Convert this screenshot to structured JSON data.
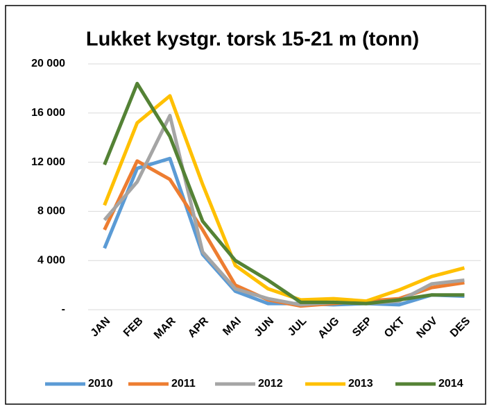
{
  "chart_data": {
    "type": "line",
    "title": "Lukket kystgr. torsk 15-21 m (tonn)",
    "categories": [
      "JAN",
      "FEB",
      "MAR",
      "APR",
      "MAI",
      "JUN",
      "JUL",
      "AUG",
      "SEP",
      "OKT",
      "NOV",
      "DES"
    ],
    "series": [
      {
        "name": "2010",
        "color": "#5b9bd5",
        "values": [
          5000,
          11500,
          12300,
          4500,
          1500,
          500,
          500,
          400,
          500,
          400,
          1200,
          1100
        ]
      },
      {
        "name": "2011",
        "color": "#ed7d31",
        "values": [
          6500,
          12100,
          10600,
          6500,
          2000,
          800,
          300,
          500,
          700,
          900,
          1800,
          2200
        ]
      },
      {
        "name": "2012",
        "color": "#a5a5a5",
        "values": [
          7300,
          10400,
          15800,
          4700,
          1700,
          900,
          400,
          600,
          500,
          700,
          2100,
          2400
        ]
      },
      {
        "name": "2013",
        "color": "#ffc000",
        "values": [
          8500,
          15200,
          17400,
          10200,
          3600,
          1700,
          800,
          900,
          700,
          1600,
          2700,
          3400
        ]
      },
      {
        "name": "2014",
        "color": "#548235",
        "values": [
          11800,
          18400,
          14100,
          7200,
          4000,
          2400,
          600,
          600,
          500,
          800,
          1200,
          1200
        ]
      }
    ],
    "ylim": [
      0,
      20000
    ],
    "yticks": [
      {
        "value": 0,
        "label": "-"
      },
      {
        "value": 4000,
        "label": "4 000"
      },
      {
        "value": 8000,
        "label": "8 000"
      },
      {
        "value": 12000,
        "label": "12 000"
      },
      {
        "value": 16000,
        "label": "16 000"
      },
      {
        "value": 20000,
        "label": "20 000"
      }
    ],
    "grid": true,
    "legend": "bottom"
  }
}
